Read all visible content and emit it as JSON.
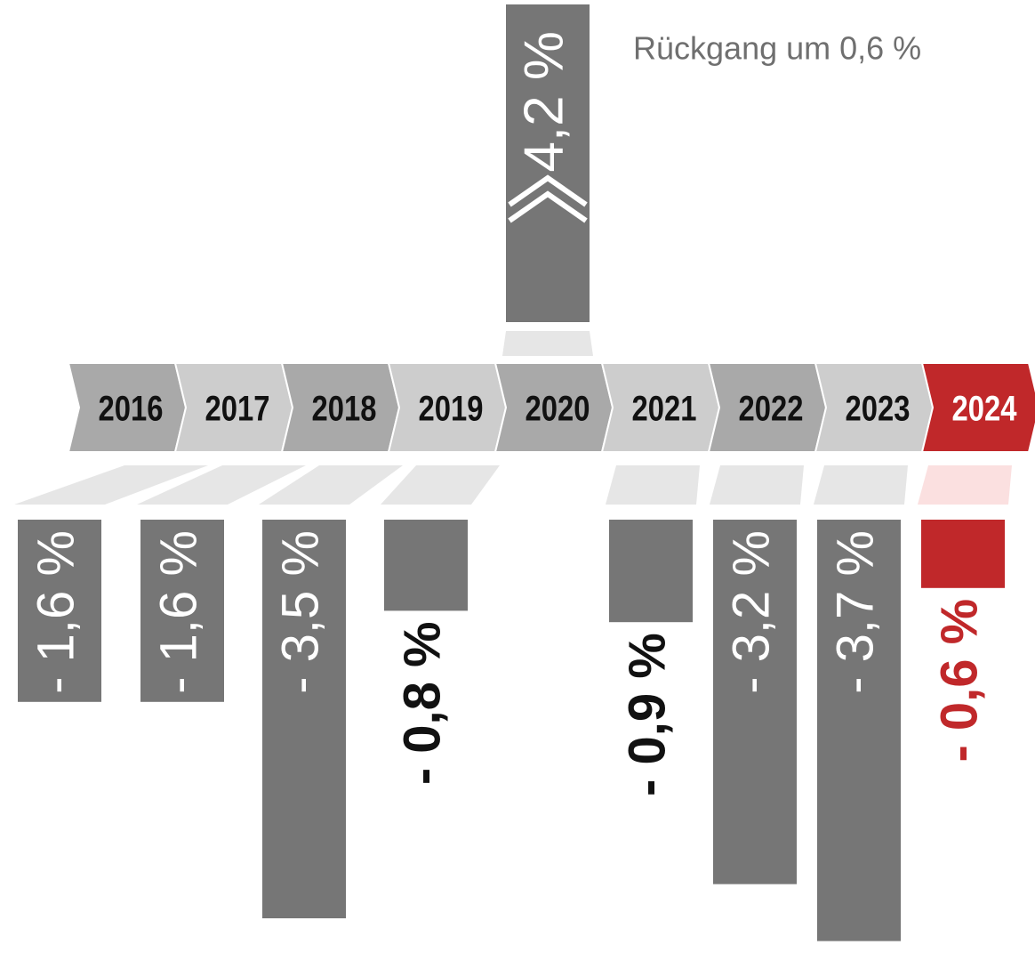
{
  "chart_data": {
    "type": "bar",
    "annotation": "Rückgang um 0,6 %",
    "categories": [
      "2016",
      "2017",
      "2018",
      "2019",
      "2020",
      "2021",
      "2022",
      "2023",
      "2024"
    ],
    "values": [
      -1.6,
      -1.6,
      -3.5,
      -0.8,
      4.2,
      -0.9,
      -3.2,
      -3.7,
      -0.6
    ],
    "value_labels": [
      "- 1,6 %",
      "- 1,6 %",
      "- 3,5 %",
      "- 0,8 %",
      "4,2 %",
      "- 0,9 %",
      "- 3,2 %",
      "- 3,7 %",
      "- 0,6 %"
    ],
    "colors": [
      "#767676",
      "#767676",
      "#767676",
      "#767676",
      "#767676",
      "#767676",
      "#767676",
      "#767676",
      "#c0282a"
    ]
  }
}
